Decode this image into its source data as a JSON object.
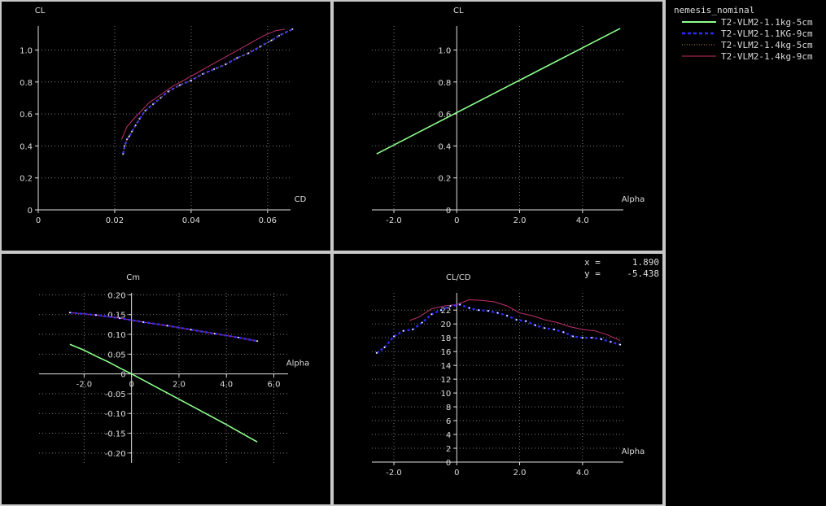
{
  "colors": {
    "background": "#000000",
    "frame": "#c8c8c8",
    "axis": "#e0e0e0",
    "grid": "#7a7a7a",
    "text": "#dcdcdc"
  },
  "legend": {
    "title": "nemesis_nominal",
    "items": [
      {
        "label": "T2-VLM2-1.1kg-5cm",
        "color": "#8cff8c",
        "style": "solid"
      },
      {
        "label": "T2-VLM2-1.1KG-9cm",
        "color": "#2b2bff",
        "style": "dotted-bold"
      },
      {
        "label": "T2-VLM2-1.4kg-5cm",
        "color": "#c08a3a",
        "style": "dotted"
      },
      {
        "label": "T2-VLM2-1.4kg-9cm",
        "color": "#c0306a",
        "style": "solid"
      }
    ]
  },
  "readout": {
    "x_label": "x =",
    "x_value": "1.890",
    "y_label": "y =",
    "y_value": "-5.438"
  },
  "chart_data": [
    {
      "type": "line",
      "xlabel": "CD",
      "ylabel": "CL",
      "xlim": [
        0,
        0.066
      ],
      "ylim": [
        0,
        1.15
      ],
      "xticks": [
        0,
        0.02,
        0.04,
        0.06
      ],
      "xtick_labels": [
        "0",
        "0.02",
        "0.04",
        "0.06"
      ],
      "yticks": [
        0,
        0.2,
        0.4,
        0.6,
        0.8,
        1.0
      ],
      "ytick_labels": [
        "0",
        "0.2",
        "0.4",
        "0.6",
        "0.8",
        "1.0"
      ],
      "grid": true,
      "series": [
        {
          "legend_index": 1,
          "x": [
            0.0222,
            0.0226,
            0.0232,
            0.0238,
            0.0245,
            0.0255,
            0.0265,
            0.028,
            0.03,
            0.032,
            0.034,
            0.037,
            0.04,
            0.043,
            0.046,
            0.049,
            0.052,
            0.055,
            0.058,
            0.061,
            0.063,
            0.0665
          ],
          "y": [
            0.35,
            0.4,
            0.44,
            0.46,
            0.49,
            0.53,
            0.57,
            0.62,
            0.66,
            0.7,
            0.74,
            0.78,
            0.81,
            0.85,
            0.88,
            0.91,
            0.95,
            0.98,
            1.02,
            1.06,
            1.09,
            1.13
          ]
        },
        {
          "legend_index": 3,
          "x": [
            0.0218,
            0.0232,
            0.025,
            0.027,
            0.029,
            0.032,
            0.035,
            0.038,
            0.041,
            0.044,
            0.047,
            0.05,
            0.053,
            0.056,
            0.059,
            0.062,
            0.0645
          ],
          "y": [
            0.44,
            0.52,
            0.57,
            0.62,
            0.67,
            0.72,
            0.77,
            0.81,
            0.85,
            0.89,
            0.93,
            0.97,
            1.01,
            1.05,
            1.09,
            1.12,
            1.13
          ]
        },
        {
          "legend_index": 2,
          "x": [
            0.0222,
            0.0226,
            0.0232,
            0.0238,
            0.0245,
            0.0255,
            0.0265,
            0.028,
            0.03,
            0.032,
            0.034,
            0.037,
            0.04,
            0.043,
            0.046,
            0.049,
            0.052,
            0.055,
            0.058,
            0.061,
            0.063,
            0.0665
          ],
          "y": [
            0.35,
            0.4,
            0.44,
            0.46,
            0.49,
            0.53,
            0.57,
            0.62,
            0.66,
            0.7,
            0.74,
            0.78,
            0.81,
            0.85,
            0.88,
            0.91,
            0.95,
            0.98,
            1.02,
            1.06,
            1.09,
            1.13
          ]
        }
      ]
    },
    {
      "type": "line",
      "xlabel": "Alpha",
      "ylabel": "CL",
      "xlim": [
        -2.7,
        5.3
      ],
      "ylim": [
        0,
        1.15
      ],
      "xticks": [
        -2,
        0,
        2,
        4
      ],
      "xtick_labels": [
        "-2.0",
        "0",
        "2.0",
        "4.0"
      ],
      "yticks": [
        0,
        0.2,
        0.4,
        0.6,
        0.8,
        1.0
      ],
      "ytick_labels": [
        "0",
        "0.2",
        "0.4",
        "0.6",
        "0.8",
        "1.0"
      ],
      "grid": true,
      "series": [
        {
          "legend_index": 3,
          "x": [
            -2.55,
            5.2
          ],
          "y": [
            0.35,
            1.135
          ]
        },
        {
          "legend_index": 2,
          "x": [
            -2.55,
            -2,
            -1.5,
            -1,
            -0.5,
            0,
            0.5,
            1,
            1.5,
            2,
            2.5,
            3,
            3.5,
            4,
            4.5,
            5,
            5.2
          ],
          "y": [
            0.35,
            0.406,
            0.457,
            0.507,
            0.558,
            0.609,
            0.659,
            0.71,
            0.761,
            0.811,
            0.862,
            0.913,
            0.963,
            1.014,
            1.065,
            1.115,
            1.135
          ]
        },
        {
          "legend_index": 0,
          "x": [
            -2.55,
            5.2
          ],
          "y": [
            0.35,
            1.135
          ]
        }
      ]
    },
    {
      "type": "line",
      "xlabel": "Alpha",
      "ylabel": "Cm",
      "xlim": [
        -3.9,
        6.6
      ],
      "ylim": [
        -0.225,
        0.205
      ],
      "xticks": [
        -2,
        0,
        2,
        4,
        6
      ],
      "xtick_labels": [
        "-2.0",
        "0",
        "2.0",
        "4.0",
        "6.0"
      ],
      "yticks": [
        -0.2,
        -0.15,
        -0.1,
        -0.05,
        0,
        0.05,
        0.1,
        0.15,
        0.2
      ],
      "ytick_labels": [
        "-0.20",
        "-0.15",
        "-0.10",
        "-0.05",
        "0",
        "0.05",
        "0.10",
        "0.15",
        "0.20"
      ],
      "grid": true,
      "series": [
        {
          "legend_index": 0,
          "x": [
            -2.6,
            -2,
            -1.5,
            -1,
            -0.5,
            0,
            1,
            2,
            3,
            4,
            5,
            5.3
          ],
          "y": [
            0.075,
            0.06,
            0.045,
            0.031,
            0.015,
            0.0,
            -0.032,
            -0.064,
            -0.096,
            -0.128,
            -0.162,
            -0.172
          ]
        },
        {
          "legend_index": 3,
          "x": [
            -2.6,
            -1.5,
            -0.5,
            0.5,
            1.5,
            2.5,
            3.5,
            4.5,
            5.3
          ],
          "y": [
            0.155,
            0.149,
            0.141,
            0.131,
            0.122,
            0.112,
            0.102,
            0.092,
            0.083
          ]
        },
        {
          "legend_index": 1,
          "x": [
            -2.6,
            -1.5,
            -0.5,
            0.5,
            1.5,
            2.5,
            3.5,
            4.5,
            5.3
          ],
          "y": [
            0.155,
            0.149,
            0.141,
            0.131,
            0.122,
            0.112,
            0.102,
            0.092,
            0.083
          ]
        }
      ]
    },
    {
      "type": "line",
      "xlabel": "Alpha",
      "ylabel": "CL/CD",
      "xlim": [
        -2.7,
        5.3
      ],
      "ylim": [
        0,
        24.5
      ],
      "xticks": [
        -2,
        0,
        2,
        4
      ],
      "xtick_labels": [
        "-2.0",
        "0",
        "2.0",
        "4.0"
      ],
      "yticks": [
        0,
        2,
        4,
        6,
        8,
        10,
        12,
        14,
        16,
        18,
        20,
        22
      ],
      "ytick_labels": [
        "0",
        "2",
        "4",
        "6",
        "8",
        "10",
        "12",
        "14",
        "16",
        "18",
        "20",
        "22"
      ],
      "grid": true,
      "series": [
        {
          "legend_index": 3,
          "x": [
            -1.5,
            -1.2,
            -0.8,
            -0.4,
            0,
            0.4,
            0.8,
            1.2,
            1.6,
            2,
            2.4,
            2.8,
            3.2,
            3.6,
            4,
            4.4,
            4.8,
            5.2
          ],
          "y": [
            20.5,
            21.0,
            22.2,
            22.6,
            22.8,
            23.5,
            23.4,
            23.2,
            22.6,
            21.6,
            21.2,
            20.6,
            20.2,
            19.6,
            19.2,
            19.0,
            18.4,
            17.6
          ]
        },
        {
          "legend_index": 1,
          "x": [
            -2.55,
            -2.3,
            -2,
            -1.7,
            -1.4,
            -1.1,
            -0.8,
            -0.5,
            -0.2,
            0.1,
            0.4,
            0.7,
            1,
            1.3,
            1.6,
            1.9,
            2.2,
            2.5,
            2.8,
            3.1,
            3.4,
            3.7,
            4,
            4.3,
            4.6,
            4.9,
            5.2
          ],
          "y": [
            15.8,
            16.6,
            18.2,
            19.0,
            19.2,
            20.2,
            21.4,
            22.0,
            22.6,
            22.8,
            22.3,
            22.0,
            21.9,
            21.6,
            21.2,
            20.6,
            20.4,
            19.8,
            19.4,
            19.2,
            18.8,
            18.2,
            18.0,
            18.0,
            17.8,
            17.4,
            17.0
          ]
        }
      ]
    }
  ]
}
